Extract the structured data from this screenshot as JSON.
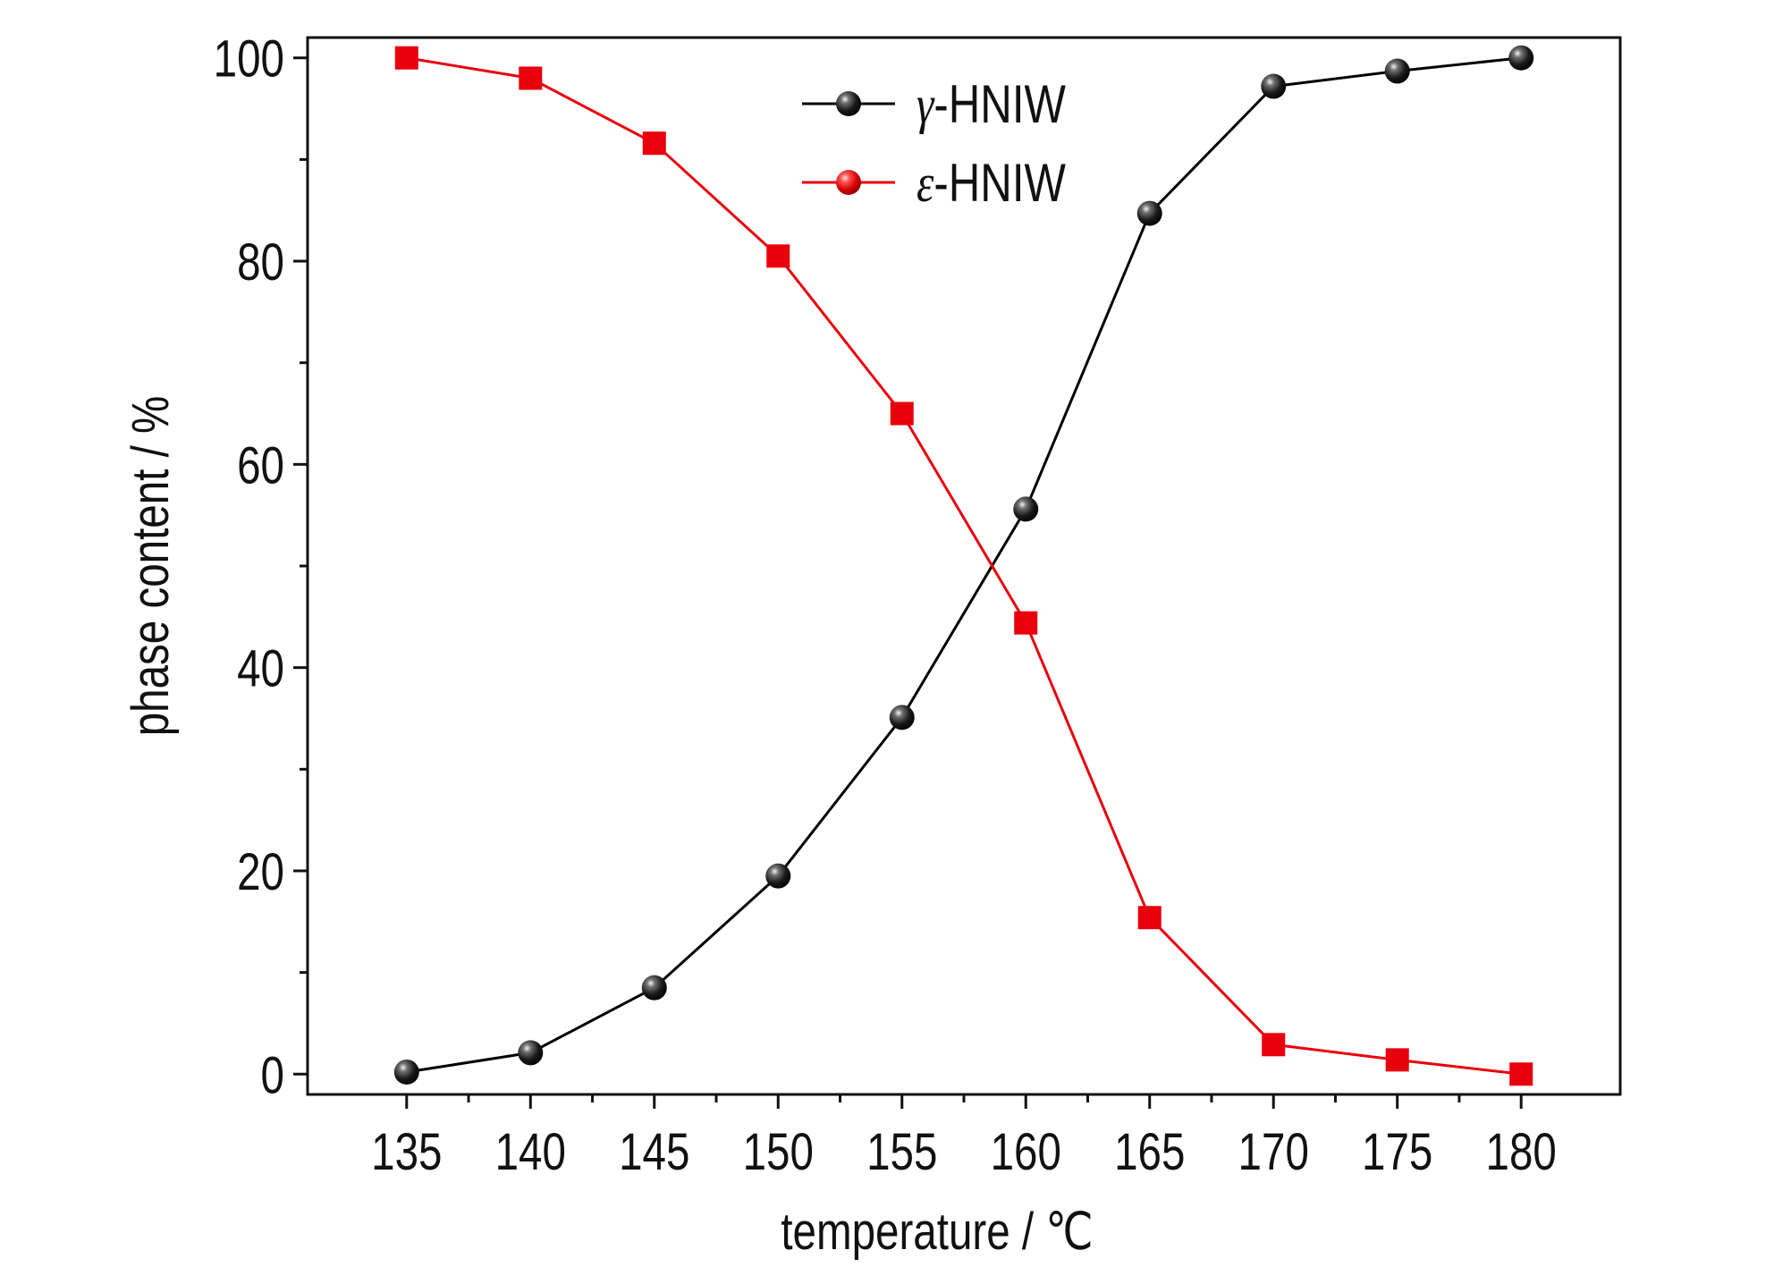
{
  "chart_data": {
    "type": "line",
    "title": "",
    "xlabel": "temperature / ℃",
    "ylabel": "phase content / %",
    "xlim": [
      131,
      184
    ],
    "ylim": [
      -2,
      102
    ],
    "xticks": [
      135,
      140,
      145,
      150,
      155,
      160,
      165,
      170,
      175,
      180
    ],
    "x_tick_labels": [
      "135",
      "140",
      "145",
      "150",
      "155",
      "160",
      "165",
      "170",
      "175",
      "180"
    ],
    "yticks": [
      0,
      20,
      40,
      60,
      80,
      100
    ],
    "y_tick_labels": [
      "0",
      "20",
      "40",
      "60",
      "80",
      "100"
    ],
    "grid": false,
    "legend_position": "top-center",
    "x": [
      135,
      140,
      145,
      150,
      155,
      160,
      165,
      170,
      175,
      180
    ],
    "series": [
      {
        "name": "γ-HNIW",
        "prefix": "γ",
        "suffix": "-HNIW",
        "color": "#000000",
        "marker": "sphere",
        "values": [
          0.2,
          2.1,
          8.5,
          19.5,
          35.1,
          55.6,
          84.7,
          97.2,
          98.7,
          100.0
        ]
      },
      {
        "name": "ε-HNIW",
        "prefix": "ε",
        "suffix": "-HNIW",
        "color": "#e8000d",
        "marker": "square",
        "legend_marker": "sphere",
        "values": [
          100.0,
          98.0,
          91.6,
          80.5,
          65.0,
          44.4,
          15.4,
          2.9,
          1.4,
          0.0
        ]
      }
    ]
  }
}
